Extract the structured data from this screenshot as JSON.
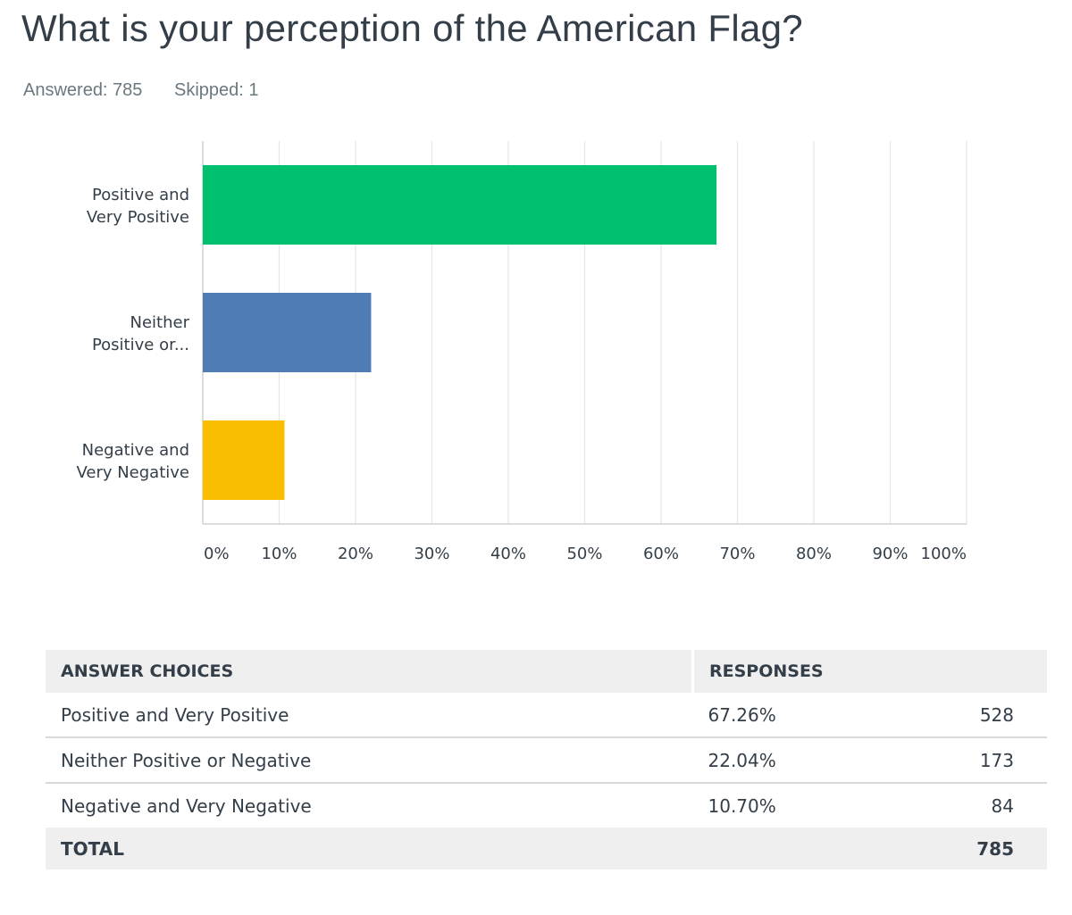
{
  "header": {
    "title": "What is your perception of the American Flag?",
    "answered": "Answered: 785",
    "skipped": "Skipped: 1"
  },
  "chart_data": {
    "type": "bar",
    "orientation": "horizontal",
    "categories": [
      [
        "Positive and",
        "Very Positive"
      ],
      [
        "Neither",
        "Positive or..."
      ],
      [
        "Negative and",
        "Very Negative"
      ]
    ],
    "values": [
      67.26,
      22.04,
      10.7
    ],
    "colors": [
      "#00bf6f",
      "#507cb6",
      "#f9be00"
    ],
    "xlim": [
      0,
      100
    ],
    "xticks": [
      0,
      10,
      20,
      30,
      40,
      50,
      60,
      70,
      80,
      90,
      100
    ],
    "xtick_labels": [
      "0%",
      "10%",
      "20%",
      "30%",
      "40%",
      "50%",
      "60%",
      "70%",
      "80%",
      "90%",
      "100%"
    ],
    "grid": true
  },
  "table": {
    "headers": [
      "ANSWER CHOICES",
      "RESPONSES"
    ],
    "rows": [
      {
        "choice": "Positive and Very Positive",
        "percent": "67.26%",
        "count": "528"
      },
      {
        "choice": "Neither Positive or Negative",
        "percent": "22.04%",
        "count": "173"
      },
      {
        "choice": "Negative and Very Negative",
        "percent": "10.70%",
        "count": "84"
      }
    ],
    "total_label": "TOTAL",
    "total_value": "785"
  }
}
